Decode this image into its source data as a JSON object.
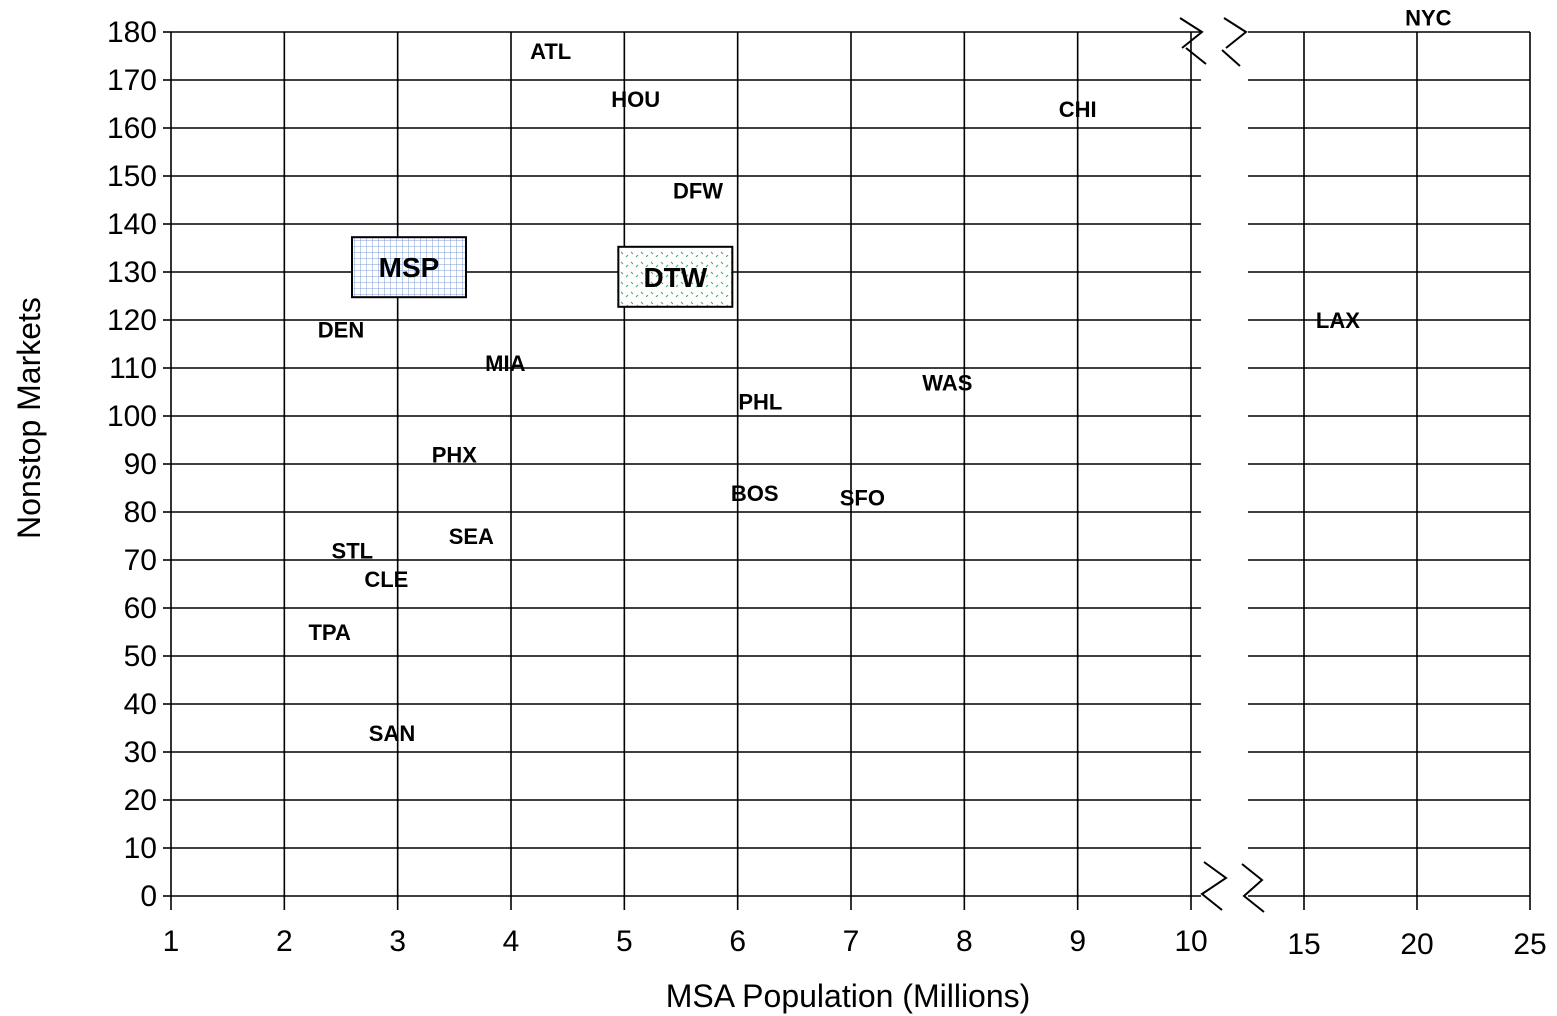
{
  "chart_data": {
    "type": "scatter",
    "xlabel": "MSA Population (Millions)",
    "ylabel": "Nonstop Markets",
    "ylim": [
      0,
      180
    ],
    "y_ticks": [
      0,
      10,
      20,
      30,
      40,
      50,
      60,
      70,
      80,
      90,
      100,
      110,
      120,
      130,
      140,
      150,
      160,
      170,
      180
    ],
    "x_segments": [
      {
        "range": [
          1,
          10
        ],
        "ticks": [
          1,
          2,
          3,
          4,
          5,
          6,
          7,
          8,
          9,
          10
        ]
      },
      {
        "range": [
          10,
          25
        ],
        "ticks": [
          15,
          20,
          25
        ],
        "note": "broken axis"
      }
    ],
    "grid": true,
    "points": [
      {
        "label": "NYC",
        "x": 20.5,
        "y": 183
      },
      {
        "label": "ATL",
        "x": 4.35,
        "y": 176
      },
      {
        "label": "HOU",
        "x": 5.1,
        "y": 166
      },
      {
        "label": "CHI",
        "x": 9.0,
        "y": 164
      },
      {
        "label": "DFW",
        "x": 5.65,
        "y": 147
      },
      {
        "label": "MSP",
        "x": 3.1,
        "y": 131,
        "highlight": "blue-grid"
      },
      {
        "label": "DTW",
        "x": 5.45,
        "y": 129,
        "highlight": "green-dots"
      },
      {
        "label": "DEN",
        "x": 2.5,
        "y": 118
      },
      {
        "label": "LAX",
        "x": 16.5,
        "y": 120
      },
      {
        "label": "MIA",
        "x": 3.95,
        "y": 111
      },
      {
        "label": "WAS",
        "x": 7.85,
        "y": 107
      },
      {
        "label": "PHL",
        "x": 6.2,
        "y": 103
      },
      {
        "label": "PHX",
        "x": 3.5,
        "y": 92
      },
      {
        "label": "BOS",
        "x": 6.15,
        "y": 84
      },
      {
        "label": "SFO",
        "x": 7.1,
        "y": 83
      },
      {
        "label": "SEA",
        "x": 3.65,
        "y": 75
      },
      {
        "label": "STL",
        "x": 2.6,
        "y": 72
      },
      {
        "label": "CLE",
        "x": 2.9,
        "y": 66
      },
      {
        "label": "TPA",
        "x": 2.4,
        "y": 55
      },
      {
        "label": "SAN",
        "x": 2.95,
        "y": 34
      }
    ]
  }
}
